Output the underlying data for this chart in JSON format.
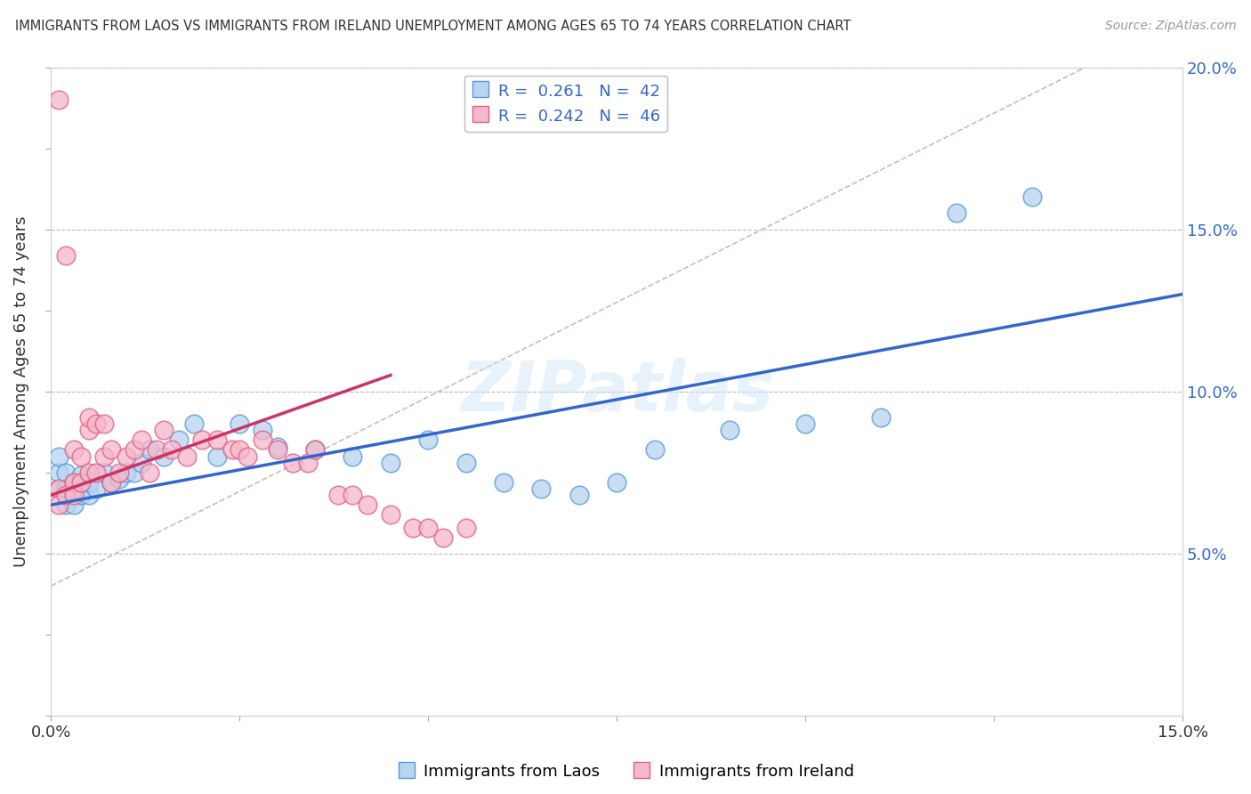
{
  "title": "IMMIGRANTS FROM LAOS VS IMMIGRANTS FROM IRELAND UNEMPLOYMENT AMONG AGES 65 TO 74 YEARS CORRELATION CHART",
  "source": "Source: ZipAtlas.com",
  "ylabel": "Unemployment Among Ages 65 to 74 years",
  "xlabel": "",
  "xlim": [
    0,
    0.15
  ],
  "ylim": [
    0,
    0.2
  ],
  "xticks": [
    0.0,
    0.025,
    0.05,
    0.075,
    0.1,
    0.125,
    0.15
  ],
  "yticks": [
    0.0,
    0.025,
    0.05,
    0.075,
    0.1,
    0.125,
    0.15,
    0.175,
    0.2
  ],
  "ytick_labels_right": [
    "",
    "",
    "5.0%",
    "",
    "10.0%",
    "",
    "15.0%",
    "",
    "20.0%"
  ],
  "xtick_labels": [
    "0.0%",
    "",
    "",
    "",
    "",
    "",
    "15.0%"
  ],
  "laos_fill_color": "#b8d4f0",
  "ireland_fill_color": "#f5b8cc",
  "laos_edge_color": "#5599dd",
  "ireland_edge_color": "#e06080",
  "laos_line_color": "#3366cc",
  "ireland_line_color": "#cc3366",
  "laos_R": 0.261,
  "laos_N": 42,
  "ireland_R": 0.242,
  "ireland_N": 46,
  "legend_label_laos": "Immigrants from Laos",
  "legend_label_ireland": "Immigrants from Ireland",
  "watermark": "ZIPatlas",
  "background_color": "#ffffff",
  "grid_color": "#bbbbbb",
  "title_color": "#333333",
  "source_color": "#999999",
  "axis_label_color": "#333333",
  "right_tick_color": "#3366cc",
  "ref_line_color": "#ccbbbb",
  "laos_x": [
    0.001,
    0.001,
    0.001,
    0.002,
    0.002,
    0.002,
    0.003,
    0.003,
    0.004,
    0.004,
    0.005,
    0.005,
    0.006,
    0.007,
    0.008,
    0.009,
    0.01,
    0.011,
    0.012,
    0.013,
    0.015,
    0.017,
    0.019,
    0.022,
    0.025,
    0.028,
    0.03,
    0.035,
    0.04,
    0.045,
    0.05,
    0.055,
    0.06,
    0.065,
    0.07,
    0.075,
    0.08,
    0.09,
    0.1,
    0.11,
    0.12,
    0.13
  ],
  "laos_y": [
    0.07,
    0.075,
    0.08,
    0.065,
    0.07,
    0.075,
    0.065,
    0.072,
    0.068,
    0.074,
    0.068,
    0.072,
    0.07,
    0.075,
    0.072,
    0.073,
    0.075,
    0.075,
    0.078,
    0.082,
    0.08,
    0.085,
    0.09,
    0.08,
    0.09,
    0.088,
    0.083,
    0.082,
    0.08,
    0.078,
    0.085,
    0.078,
    0.072,
    0.07,
    0.068,
    0.072,
    0.082,
    0.088,
    0.09,
    0.092,
    0.155,
    0.16
  ],
  "ireland_x": [
    0.001,
    0.001,
    0.001,
    0.002,
    0.002,
    0.003,
    0.003,
    0.003,
    0.004,
    0.004,
    0.005,
    0.005,
    0.005,
    0.006,
    0.006,
    0.007,
    0.007,
    0.008,
    0.008,
    0.009,
    0.01,
    0.011,
    0.012,
    0.013,
    0.014,
    0.015,
    0.016,
    0.018,
    0.02,
    0.022,
    0.024,
    0.025,
    0.026,
    0.028,
    0.03,
    0.032,
    0.034,
    0.035,
    0.038,
    0.04,
    0.042,
    0.045,
    0.048,
    0.05,
    0.052,
    0.055
  ],
  "ireland_y": [
    0.19,
    0.07,
    0.065,
    0.142,
    0.068,
    0.072,
    0.082,
    0.068,
    0.08,
    0.072,
    0.088,
    0.075,
    0.092,
    0.075,
    0.09,
    0.08,
    0.09,
    0.072,
    0.082,
    0.075,
    0.08,
    0.082,
    0.085,
    0.075,
    0.082,
    0.088,
    0.082,
    0.08,
    0.085,
    0.085,
    0.082,
    0.082,
    0.08,
    0.085,
    0.082,
    0.078,
    0.078,
    0.082,
    0.068,
    0.068,
    0.065,
    0.062,
    0.058,
    0.058,
    0.055,
    0.058
  ],
  "laos_line_x": [
    0.0,
    0.15
  ],
  "laos_line_y": [
    0.065,
    0.13
  ],
  "ireland_line_x": [
    0.0,
    0.045
  ],
  "ireland_line_y": [
    0.068,
    0.105
  ],
  "ref_line_x": [
    0.0,
    0.15
  ],
  "ref_line_y": [
    0.04,
    0.215
  ]
}
